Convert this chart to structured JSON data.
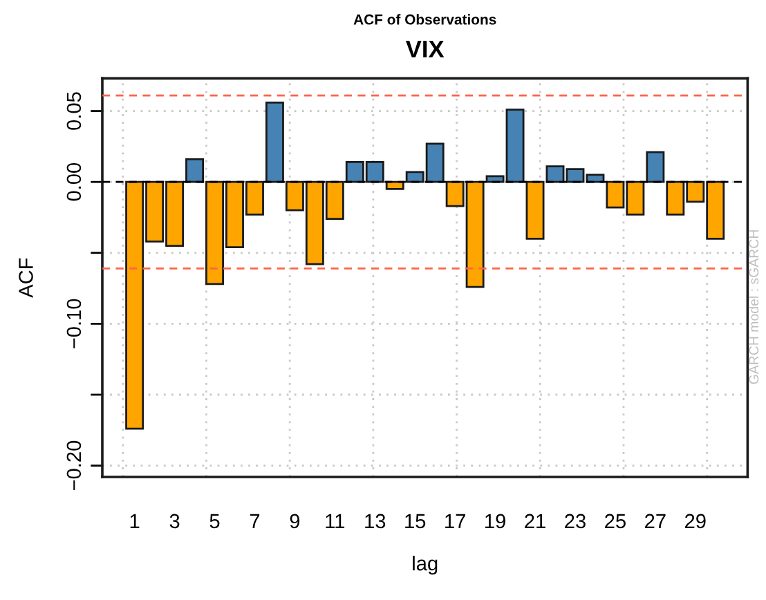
{
  "chart_data": {
    "type": "bar",
    "title": "ACF of Observations",
    "subtitle": "VIX",
    "xlabel": "lag",
    "ylabel": "ACF",
    "categories": [
      "1",
      null,
      "3",
      null,
      "5",
      null,
      "7",
      null,
      "9",
      null,
      "11",
      null,
      "13",
      null,
      "15",
      null,
      "17",
      null,
      "19",
      null,
      "21",
      null,
      "23",
      null,
      "25",
      null,
      "27",
      null,
      "29",
      null
    ],
    "values": [
      -0.174,
      -0.042,
      -0.045,
      0.016,
      -0.072,
      -0.046,
      -0.023,
      0.056,
      -0.02,
      -0.058,
      -0.026,
      0.014,
      0.014,
      -0.005,
      0.007,
      0.027,
      -0.017,
      -0.074,
      0.004,
      0.051,
      -0.04,
      0.011,
      0.009,
      0.005,
      -0.018,
      -0.023,
      0.021,
      -0.023,
      -0.014,
      -0.04
    ],
    "colors": [
      "#ffa500",
      "#ffa500",
      "#ffa500",
      "#4682b4",
      "#ffa500",
      "#ffa500",
      "#ffa500",
      "#4682b4",
      "#ffa500",
      "#ffa500",
      "#ffa500",
      "#4682b4",
      "#4682b4",
      "#ffa500",
      "#4682b4",
      "#4682b4",
      "#ffa500",
      "#ffa500",
      "#4682b4",
      "#4682b4",
      "#ffa500",
      "#4682b4",
      "#4682b4",
      "#4682b4",
      "#ffa500",
      "#ffa500",
      "#4682b4",
      "#ffa500",
      "#ffa500",
      "#ffa500"
    ],
    "ylim": [
      -0.208,
      0.073
    ],
    "yticks": [
      {
        "value": -0.2,
        "label": "−0.20"
      },
      {
        "value": -0.15,
        "label": null
      },
      {
        "value": -0.1,
        "label": "−0.10"
      },
      {
        "value": -0.05,
        "label": null
      },
      {
        "value": 0,
        "label": "0.00"
      },
      {
        "value": 0.05,
        "label": "0.05"
      }
    ],
    "ref_lines": [
      {
        "axis": "y",
        "value": 0.061,
        "color": "#ff6347",
        "line_style": "dashed"
      },
      {
        "axis": "y",
        "value": -0.061,
        "color": "#ff6347",
        "line_style": "dashed"
      },
      {
        "axis": "y",
        "value": 0,
        "color": "#000000",
        "line_style": "dashed"
      }
    ],
    "grid": true,
    "annotations": [
      "GARCH model : sGARCH"
    ]
  }
}
